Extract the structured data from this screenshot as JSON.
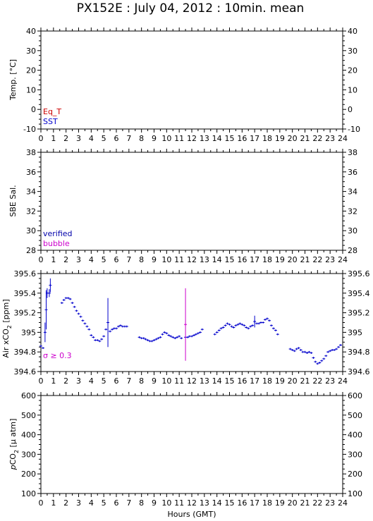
{
  "title": "PX152E : July 04, 2012 : 10min. mean",
  "xlabel": "Hours (GMT)",
  "x_ticks": [
    "0",
    "1",
    "2",
    "3",
    "4",
    "5",
    "6",
    "7",
    "8",
    "9",
    "10",
    "11",
    "12",
    "13",
    "14",
    "15",
    "16",
    "17",
    "18",
    "19",
    "20",
    "21",
    "22",
    "23",
    "24"
  ],
  "colors": {
    "eq_t": "#cc0000",
    "sst": "#0000cc",
    "verified": "#0000aa",
    "bubble": "#cc00cc",
    "data": "#0000cc",
    "high_sigma": "#cc00cc",
    "axis": "#000000"
  },
  "chart_data": [
    {
      "type": "scatter",
      "ylabel": "Temp. [°C]",
      "xlim": [
        0,
        24
      ],
      "ylim": [
        -10,
        40
      ],
      "y_ticks": [
        "-10",
        "0",
        "10",
        "20",
        "30",
        "40"
      ],
      "legend": [
        "Eq_T",
        "SST"
      ],
      "legend_position": "bottom-left",
      "series": []
    },
    {
      "type": "scatter",
      "ylabel": "SBE Sal.",
      "xlim": [
        0,
        24
      ],
      "ylim": [
        28,
        38
      ],
      "y_ticks": [
        "28",
        "30",
        "32",
        "34",
        "36",
        "38"
      ],
      "legend": [
        "verified",
        "bubble"
      ],
      "legend_position": "bottom-left",
      "series": []
    },
    {
      "type": "scatter",
      "ylabel_main": "Air xCO",
      "ylabel_sub": "2",
      "ylabel_unit": " [ppm]",
      "xlim": [
        0,
        24
      ],
      "ylim": [
        394.6,
        395.6
      ],
      "y_ticks": [
        "394.6",
        "394.8",
        "395",
        "395.2",
        "395.4",
        "395.6"
      ],
      "annotation": "σ ≥ 0.3",
      "series": [
        {
          "points": [
            [
              0.0,
              394.86,
              0.01
            ],
            [
              0.17,
              394.84,
              0.01
            ],
            [
              0.33,
              395.0,
              0.1
            ],
            [
              0.42,
              395.23,
              0.2
            ],
            [
              0.5,
              395.4,
              0.05
            ],
            [
              0.67,
              395.4,
              0.04
            ],
            [
              0.75,
              395.48,
              0.07
            ],
            [
              1.67,
              395.3,
              0.01
            ],
            [
              1.83,
              395.33,
              0.01
            ],
            [
              2.0,
              395.35,
              0.01
            ],
            [
              2.17,
              395.35,
              0.01
            ],
            [
              2.33,
              395.34,
              0.01
            ],
            [
              2.5,
              395.3,
              0.01
            ],
            [
              2.67,
              395.26,
              0.01
            ],
            [
              2.83,
              395.22,
              0.01
            ],
            [
              3.0,
              395.19,
              0.01
            ],
            [
              3.17,
              395.16,
              0.01
            ],
            [
              3.33,
              395.12,
              0.01
            ],
            [
              3.5,
              395.09,
              0.01
            ],
            [
              3.67,
              395.06,
              0.01
            ],
            [
              3.83,
              395.03,
              0.01
            ],
            [
              4.0,
              394.97,
              0.01
            ],
            [
              4.17,
              394.95,
              0.01
            ],
            [
              4.33,
              394.92,
              0.01
            ],
            [
              4.5,
              394.92,
              0.01
            ],
            [
              4.67,
              394.91,
              0.01
            ],
            [
              4.83,
              394.93,
              0.01
            ],
            [
              5.0,
              394.96,
              0.01
            ],
            [
              5.17,
              395.03,
              0.01
            ],
            [
              5.33,
              395.1,
              0.25
            ],
            [
              5.5,
              395.01,
              0.01
            ],
            [
              5.67,
              395.03,
              0.01
            ],
            [
              5.83,
              395.04,
              0.01
            ],
            [
              6.0,
              395.04,
              0.01
            ],
            [
              6.17,
              395.06,
              0.01
            ],
            [
              6.33,
              395.07,
              0.01
            ],
            [
              6.5,
              395.06,
              0.01
            ],
            [
              6.67,
              395.06,
              0.01
            ],
            [
              6.83,
              395.06,
              0.01
            ],
            [
              7.83,
              394.95,
              0.01
            ],
            [
              8.0,
              394.94,
              0.01
            ],
            [
              8.17,
              394.94,
              0.01
            ],
            [
              8.33,
              394.93,
              0.01
            ],
            [
              8.5,
              394.92,
              0.01
            ],
            [
              8.67,
              394.91,
              0.01
            ],
            [
              8.83,
              394.91,
              0.01
            ],
            [
              9.0,
              394.92,
              0.01
            ],
            [
              9.17,
              394.93,
              0.01
            ],
            [
              9.33,
              394.94,
              0.01
            ],
            [
              9.5,
              394.95,
              0.01
            ],
            [
              9.67,
              394.98,
              0.01
            ],
            [
              9.83,
              395.0,
              0.01
            ],
            [
              10.0,
              394.99,
              0.01
            ],
            [
              10.17,
              394.97,
              0.01
            ],
            [
              10.33,
              394.96,
              0.01
            ],
            [
              10.5,
              394.95,
              0.01
            ],
            [
              10.67,
              394.94,
              0.01
            ],
            [
              10.83,
              394.95,
              0.01
            ],
            [
              11.0,
              394.96,
              0.01
            ],
            [
              11.17,
              394.94,
              0.01
            ],
            [
              11.5,
              394.95,
              0.01
            ],
            [
              11.67,
              394.95,
              0.01
            ],
            [
              11.83,
              394.96,
              0.01
            ],
            [
              12.0,
              394.96,
              0.01
            ],
            [
              12.17,
              394.97,
              0.01
            ],
            [
              12.33,
              394.98,
              0.01
            ],
            [
              12.5,
              394.99,
              0.01
            ],
            [
              12.67,
              395.0,
              0.01
            ],
            [
              12.83,
              395.03,
              0.01
            ],
            [
              13.83,
              394.98,
              0.01
            ],
            [
              14.0,
              395.0,
              0.01
            ],
            [
              14.17,
              395.02,
              0.01
            ],
            [
              14.33,
              395.04,
              0.01
            ],
            [
              14.5,
              395.05,
              0.01
            ],
            [
              14.67,
              395.07,
              0.01
            ],
            [
              14.83,
              395.09,
              0.01
            ],
            [
              15.0,
              395.08,
              0.01
            ],
            [
              15.17,
              395.06,
              0.01
            ],
            [
              15.33,
              395.05,
              0.01
            ],
            [
              15.5,
              395.07,
              0.01
            ],
            [
              15.67,
              395.08,
              0.01
            ],
            [
              15.83,
              395.09,
              0.01
            ],
            [
              16.0,
              395.08,
              0.01
            ],
            [
              16.17,
              395.07,
              0.01
            ],
            [
              16.33,
              395.05,
              0.01
            ],
            [
              16.5,
              395.04,
              0.01
            ],
            [
              16.67,
              395.06,
              0.01
            ],
            [
              16.83,
              395.07,
              0.01
            ],
            [
              17.0,
              395.11,
              0.06
            ],
            [
              17.17,
              395.09,
              0.01
            ],
            [
              17.33,
              395.09,
              0.01
            ],
            [
              17.5,
              395.1,
              0.01
            ],
            [
              17.67,
              395.1,
              0.01
            ],
            [
              17.83,
              395.13,
              0.01
            ],
            [
              18.0,
              395.14,
              0.01
            ],
            [
              18.17,
              395.12,
              0.01
            ],
            [
              18.33,
              395.07,
              0.01
            ],
            [
              18.5,
              395.04,
              0.01
            ],
            [
              18.67,
              395.02,
              0.01
            ],
            [
              18.83,
              394.98,
              0.01
            ],
            [
              19.83,
              394.83,
              0.01
            ],
            [
              20.0,
              394.82,
              0.01
            ],
            [
              20.17,
              394.81,
              0.01
            ],
            [
              20.33,
              394.83,
              0.01
            ],
            [
              20.5,
              394.84,
              0.01
            ],
            [
              20.67,
              394.82,
              0.01
            ],
            [
              20.83,
              394.8,
              0.01
            ],
            [
              21.0,
              394.8,
              0.01
            ],
            [
              21.17,
              394.79,
              0.01
            ],
            [
              21.33,
              394.8,
              0.01
            ],
            [
              21.5,
              394.79,
              0.01
            ],
            [
              21.67,
              394.74,
              0.01
            ],
            [
              21.83,
              394.7,
              0.01
            ],
            [
              22.0,
              394.68,
              0.01
            ],
            [
              22.17,
              394.69,
              0.01
            ],
            [
              22.33,
              394.71,
              0.01
            ],
            [
              22.5,
              394.73,
              0.01
            ],
            [
              22.67,
              394.76,
              0.01
            ],
            [
              22.83,
              394.8,
              0.01
            ],
            [
              23.0,
              394.81,
              0.01
            ],
            [
              23.17,
              394.82,
              0.01
            ],
            [
              23.33,
              394.82,
              0.01
            ],
            [
              23.5,
              394.83,
              0.01
            ],
            [
              23.67,
              394.85,
              0.01
            ],
            [
              23.83,
              394.87,
              0.01
            ]
          ],
          "high_sigma_points": [
            [
              11.5,
              395.08,
              0.37
            ]
          ]
        }
      ]
    },
    {
      "type": "scatter",
      "ylabel_italic": "p",
      "ylabel_main": "CO",
      "ylabel_sub": "2",
      "ylabel_unit": " [µ atm]",
      "xlim": [
        0,
        24
      ],
      "ylim": [
        100,
        600
      ],
      "y_ticks": [
        "100",
        "200",
        "300",
        "400",
        "500",
        "600"
      ],
      "series": []
    }
  ]
}
